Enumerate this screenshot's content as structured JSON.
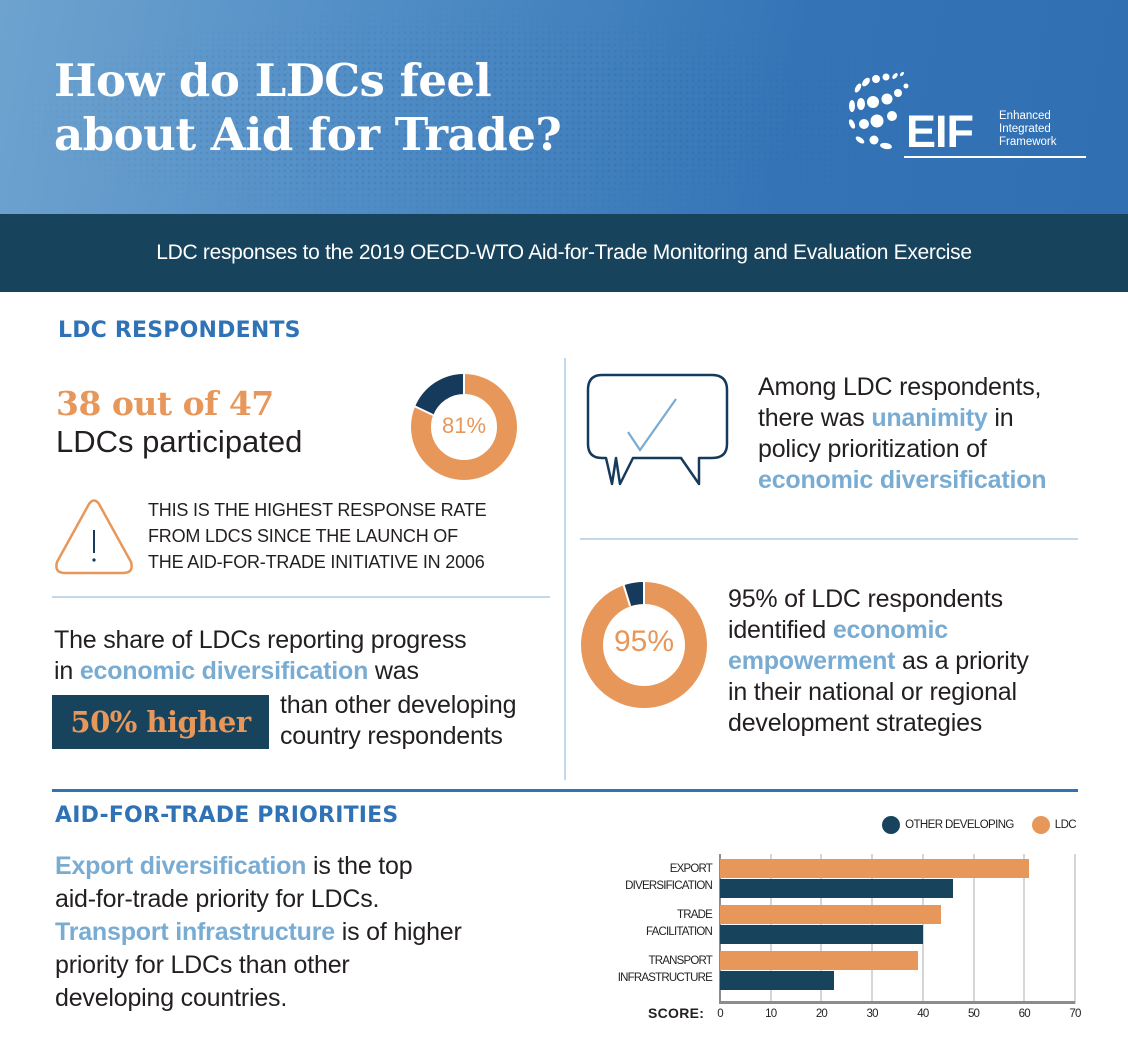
{
  "header": {
    "title_line1": "How do LDCs feel",
    "title_line2": "about Aid for Trade?",
    "logo": {
      "mark": "EIF",
      "line1": "Enhanced",
      "line2": "Integrated",
      "line3": "Framework"
    }
  },
  "subtitle": "LDC responses to the 2019 OECD-WTO Aid-for-Trade Monitoring and Evaluation Exercise",
  "respondents": {
    "heading": "LDC RESPONDENTS",
    "stat": "38 out of 47",
    "stat_sub": "LDCs participated",
    "donut_label": "81%",
    "donut_value": 81,
    "note_icon": "warning-triangle-icon",
    "note_lines": [
      "THIS IS THE HIGHEST RESPONSE RATE",
      "FROM LDCS SINCE THE LAUNCH OF",
      "THE AID-FOR-TRADE INITIATIVE IN 2006"
    ],
    "share": {
      "line1": "The share of LDCs reporting progress",
      "line2_pre": "in ",
      "line2_hl": "economic diversification",
      "line2_post": " was",
      "badge": "50% higher",
      "line3": "than other developing",
      "line4": "country respondents"
    }
  },
  "unanimity": {
    "icon": "speech-bubble-check-icon",
    "line1": "Among LDC respondents,",
    "line2_pre": "there was ",
    "line2_hl": "unanimity",
    "line2_post": " in",
    "line3": "policy prioritization of",
    "line4_hl": "economic diversification"
  },
  "empowerment": {
    "donut_label": "95%",
    "donut_value": 95,
    "line1": "95% of LDC respondents",
    "line2_pre": "identified ",
    "line2_hl": "economic",
    "line3_hl": "empowerment",
    "line3_post": " as a priority",
    "line4": "in their national or regional",
    "line5": "development strategies"
  },
  "priorities": {
    "heading": "AID-FOR-TRADE PRIORITIES",
    "line1_hl": "Export diversification",
    "line1_post": " is the top",
    "line2": "aid-for-trade priority for LDCs.",
    "line3_hl": "Transport infrastructure",
    "line3_post": " is of higher",
    "line4": "priority for LDCs than other",
    "line5": "developing countries."
  },
  "colors": {
    "orange": "#e8975a",
    "navy": "#18435d",
    "accent_blue": "#2f73b6",
    "light_blue": "#79acd3"
  },
  "chart_data": {
    "type": "bar",
    "orientation": "horizontal",
    "title": "",
    "xlabel": "SCORE:",
    "ylabel": "",
    "categories": [
      "EXPORT DIVERSIFICATION",
      "TRADE FACILITATION",
      "TRANSPORT INFRASTRUCTURE"
    ],
    "category_lines": [
      [
        "EXPORT",
        "DIVERSIFICATION"
      ],
      [
        "TRADE",
        "FACILITATION"
      ],
      [
        "TRANSPORT",
        "INFRASTRUCTURE"
      ]
    ],
    "series": [
      {
        "name": "LDC",
        "color": "#e8975a",
        "values": [
          61,
          43.5,
          39
        ]
      },
      {
        "name": "OTHER DEVELOPING",
        "color": "#18435d",
        "values": [
          46,
          40,
          22.5
        ]
      }
    ],
    "legend": [
      "OTHER DEVELOPING",
      "LDC"
    ],
    "legend_position": "top-right",
    "xlim": [
      0,
      70
    ],
    "xticks": [
      "0",
      "10",
      "20",
      "30",
      "40",
      "50",
      "60",
      "70"
    ],
    "grid": true
  }
}
